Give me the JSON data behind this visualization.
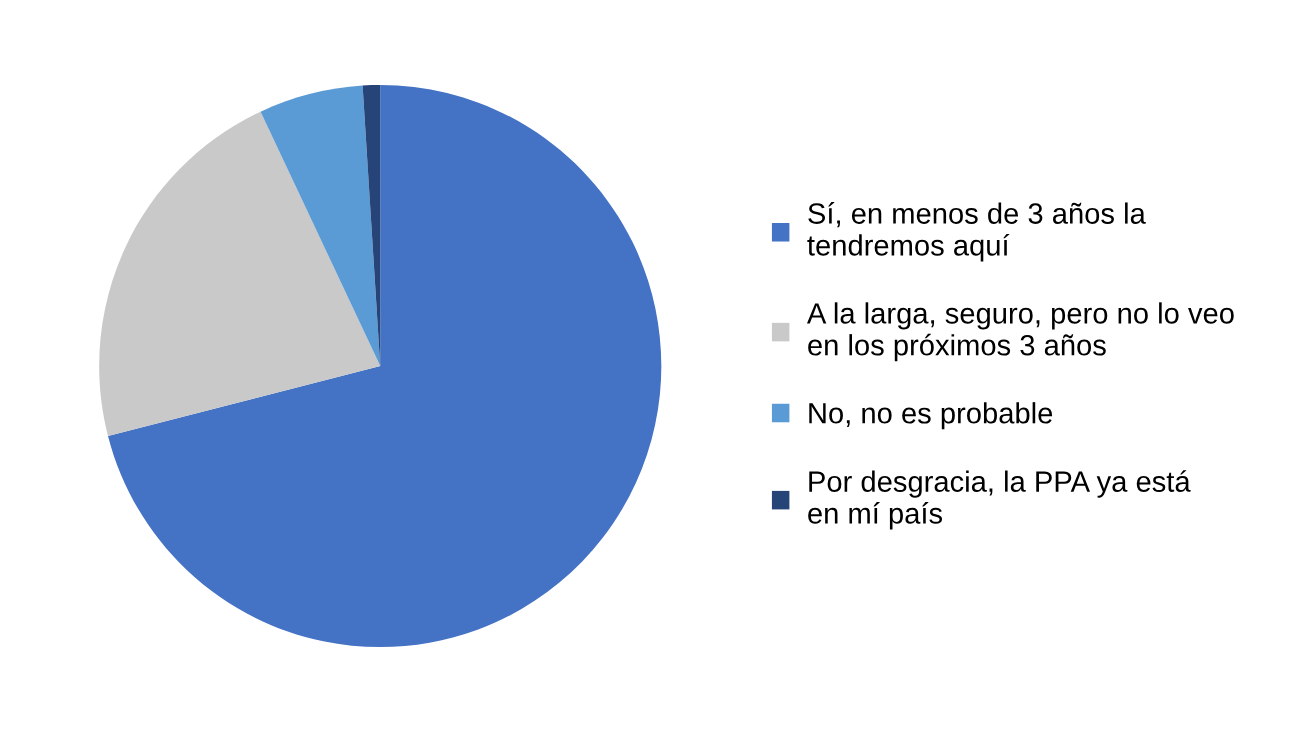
{
  "chart_data": {
    "type": "pie",
    "categories": [
      "Sí, en menos de 3 años la\ntendremos aquí",
      "A la larga, seguro, pero no lo veo\nen los próximos 3 años",
      "No, no es probable",
      "Por desgracia, la PPA ya está\nen mí país"
    ],
    "values": [
      71,
      22,
      6,
      1
    ],
    "colors": [
      "#4472c4",
      "#c9c9c9",
      "#5b9bd5",
      "#264478"
    ],
    "legend": "right"
  }
}
